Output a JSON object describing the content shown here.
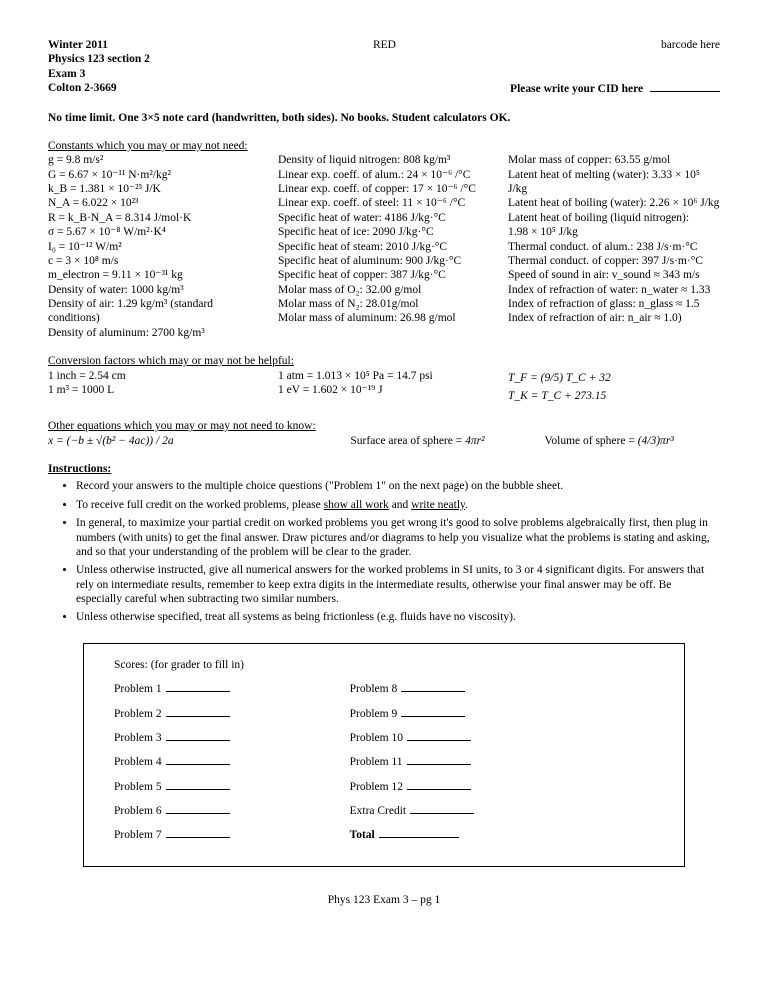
{
  "header": {
    "left1": "Winter 2011",
    "center": "RED",
    "right1": "barcode here",
    "left2": "Physics 123 section 2",
    "left3": "Exam 3",
    "left4": "Colton 2-3669",
    "right4_pre": "Please write your CID here"
  },
  "rule": "No time limit.  One 3×5 note card (handwritten, both sides). No books. Student calculators OK.",
  "constants_title": "Constants which you may or may not need:",
  "constants_col1": [
    "g = 9.8 m/s²",
    "G = 6.67 × 10⁻¹¹ N·m²/kg²",
    "k_B = 1.381 × 10⁻²³ J/K",
    "N_A = 6.022 × 10²³",
    "R = k_B·N_A = 8.314 J/mol·K",
    "σ = 5.67 × 10⁻⁸ W/m²·K⁴",
    "I₀ = 10⁻¹² W/m²",
    "c = 3 × 10⁸ m/s",
    "m_electron = 9.11 × 10⁻³¹ kg",
    "Density of water: 1000 kg/m³",
    "Density of air: 1.29 kg/m³ (standard conditions)",
    "Density of aluminum: 2700 kg/m³"
  ],
  "constants_col2": [
    "Density of liquid nitrogen: 808 kg/m³",
    "Linear exp. coeff. of alum.: 24 × 10⁻⁶ /°C",
    "Linear exp. coeff. of copper: 17 × 10⁻⁶ /°C",
    "Linear exp. coeff. of steel: 11 × 10⁻⁶ /°C",
    "Specific heat of water: 4186 J/kg·°C",
    "Specific heat of ice: 2090 J/kg·°C",
    "Specific heat of steam: 2010 J/kg·°C",
    "Specific heat of aluminum: 900 J/kg·°C",
    "Specific heat of copper: 387 J/kg·°C",
    "Molar mass of O₂: 32.00 g/mol",
    "Molar mass of N₂: 28.01g/mol",
    "Molar mass of aluminum: 26.98 g/mol"
  ],
  "constants_col3": [
    "Molar mass of copper: 63.55 g/mol",
    "Latent heat of melting (water): 3.33 × 10⁵ J/kg",
    "Latent heat of boiling (water):  2.26 × 10⁶ J/kg",
    "Latent heat of boiling (liquid nitrogen):",
    "        1.98 × 10⁵ J/kg",
    "Thermal conduct. of alum.: 238 J/s·m·°C",
    "Thermal conduct. of copper: 397 J/s·m·°C",
    "Speed of sound in air: v_sound ≈ 343 m/s",
    "Index of refraction of water: n_water ≈ 1.33",
    "Index of refraction of glass: n_glass ≈ 1.5",
    "Index of refraction of air: n_air ≈ 1.0)"
  ],
  "conv_title": "Conversion factors which may or may not be helpful:",
  "conv_col1": [
    "1 inch = 2.54 cm",
    "1 m³ = 1000 L"
  ],
  "conv_col2": [
    "1 atm = 1.013 × 10⁵ Pa = 14.7 psi",
    "1 eV = 1.602 × 10⁻¹⁹ J"
  ],
  "conv_col3": [
    "T_F = (9/5) T_C + 32",
    "T_K = T_C + 273.15"
  ],
  "other_title": "Other equations which you may or may not need to know:",
  "other_eq1": "x = (−b ± √(b² − 4ac)) / 2a",
  "other_eq2_label": "Surface area of sphere =",
  "other_eq2_val": " 4πr²",
  "other_eq3_label": "Volume of sphere =",
  "other_eq3_val": " (4/3)πr³",
  "instructions_title": "Instructions:",
  "instructions": [
    "Record your answers to the multiple choice questions (\"Problem 1\" on the next page) on the bubble sheet.",
    "To receive full credit on the worked problems, please <u>show all work</u> and <u>write neatly</u>.",
    "In general, to maximize your partial credit on worked problems you get wrong it's good to solve problems algebraically first, then plug in numbers (with units) to get the final answer. Draw pictures and/or diagrams to help you visualize what the problems is stating and asking, and so that your understanding of the problem will be clear to the grader.",
    "Unless otherwise instructed, give all numerical answers for the worked problems in SI units, to 3 or 4 significant digits. For answers that rely on intermediate results, remember to keep extra digits in the intermediate results, otherwise your final answer may be off. Be especially careful when subtracting two similar numbers.",
    "Unless otherwise specified, treat all systems as being frictionless (e.g. fluids have no viscosity)."
  ],
  "scores_title": "Scores: (for grader to fill in)",
  "scores_left": [
    "Problem 1",
    "Problem 2",
    "Problem 3",
    "Problem 4",
    "Problem 5",
    "Problem 6",
    "Problem 7"
  ],
  "scores_right": [
    "Problem 8",
    "Problem 9",
    "Problem 10",
    "Problem 11",
    "Problem 12",
    "Extra Credit"
  ],
  "scores_total": "Total",
  "footer": "Phys 123 Exam 3 – pg 1"
}
